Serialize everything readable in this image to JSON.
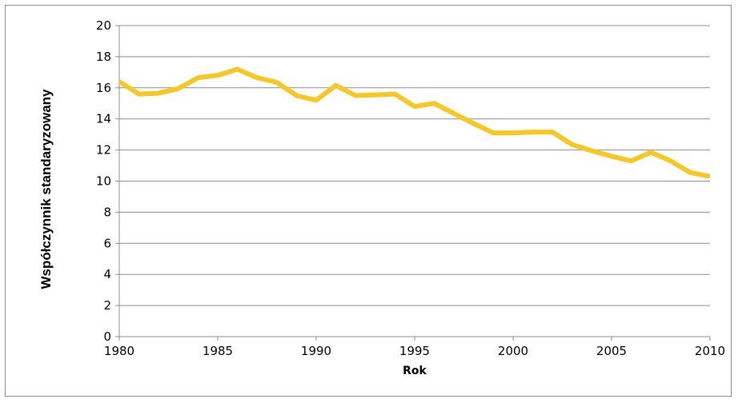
{
  "chart_data": {
    "type": "line",
    "xlabel": "Rok",
    "ylabel": "Współczynnik standaryzowany",
    "xlim": [
      1980,
      2010
    ],
    "ylim": [
      0,
      20
    ],
    "x_ticks": [
      "1980",
      "1985",
      "1990",
      "1995",
      "2000",
      "2005",
      "2010"
    ],
    "y_ticks": [
      "0",
      "2",
      "4",
      "6",
      "8",
      "10",
      "12",
      "14",
      "16",
      "18",
      "20"
    ],
    "grid": true,
    "legend": "none",
    "series": [
      {
        "color": "#f7c823",
        "x": [
          1980,
          1981,
          1982,
          1983,
          1984,
          1985,
          1986,
          1987,
          1988,
          1989,
          1990,
          1991,
          1992,
          1993,
          1994,
          1995,
          1996,
          1997,
          1998,
          1999,
          2000,
          2001,
          2002,
          2003,
          2004,
          2005,
          2006,
          2007,
          2008,
          2009,
          2010
        ],
        "values": [
          16.4,
          15.6,
          15.65,
          15.95,
          16.65,
          16.8,
          17.2,
          16.65,
          16.35,
          15.5,
          15.2,
          16.15,
          15.5,
          15.55,
          15.6,
          14.8,
          15.0,
          14.35,
          13.7,
          13.1,
          13.1,
          13.15,
          13.15,
          12.35,
          11.95,
          11.6,
          11.3,
          11.85,
          11.3,
          10.55,
          10.3
        ]
      }
    ]
  }
}
